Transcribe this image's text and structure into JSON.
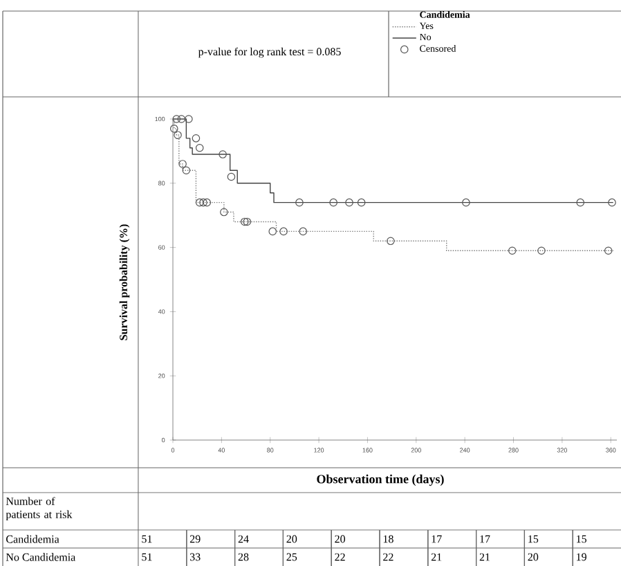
{
  "chart_data": {
    "type": "step",
    "xlabel": "Observation time (days)",
    "ylabel": "Survival probability (%)",
    "legend_title": "Candidemia",
    "legend": "top right",
    "grid": false,
    "xlim": [
      0,
      365
    ],
    "ylim": [
      0,
      100
    ],
    "xticks": [
      0,
      40,
      80,
      120,
      160,
      200,
      240,
      280,
      320,
      360
    ],
    "yticks": [
      0,
      20,
      40,
      60,
      80,
      100
    ],
    "series": [
      {
        "name": "Yes",
        "color": "#777777",
        "line_style": "dotted",
        "x": [
          0,
          1,
          3,
          5,
          8,
          19,
          42,
          50,
          85,
          165,
          225,
          362
        ],
        "values": [
          100,
          97,
          95,
          86,
          84,
          74,
          71,
          68,
          65,
          62,
          59,
          59
        ]
      },
      {
        "name": "No",
        "color": "#444444",
        "line_style": "solid",
        "x": [
          0,
          11,
          14,
          16,
          47,
          53,
          80,
          83,
          362
        ],
        "values": [
          100,
          94,
          91,
          89,
          84,
          80,
          77,
          74,
          74
        ]
      },
      {
        "name": "Censored",
        "type": "scatter",
        "marker": "circle",
        "color": "#555555",
        "x": [
          3,
          7,
          13,
          19,
          22,
          41,
          48,
          104,
          132,
          145,
          155,
          241,
          335,
          361,
          1,
          4,
          8,
          11,
          22,
          25,
          28,
          42,
          59,
          61,
          82,
          91,
          107,
          179,
          279,
          303,
          358
        ],
        "values": [
          100,
          100,
          100,
          94,
          91,
          89,
          82,
          74,
          74,
          74,
          74,
          74,
          74,
          74,
          97,
          95,
          86,
          84,
          74,
          74,
          74,
          71,
          68,
          68,
          65,
          65,
          65,
          62,
          59,
          59,
          59
        ]
      }
    ],
    "annotations": [
      "p-value for log rank test = 0.085",
      "Number of patients at risk",
      "Candidemia",
      "51",
      "29",
      "24",
      "20",
      "20",
      "18",
      "17",
      "17",
      "15",
      "15",
      "No Candidemia",
      "51",
      "33",
      "28",
      "25",
      "22",
      "22",
      "21",
      "21",
      "20",
      "19"
    ]
  }
}
